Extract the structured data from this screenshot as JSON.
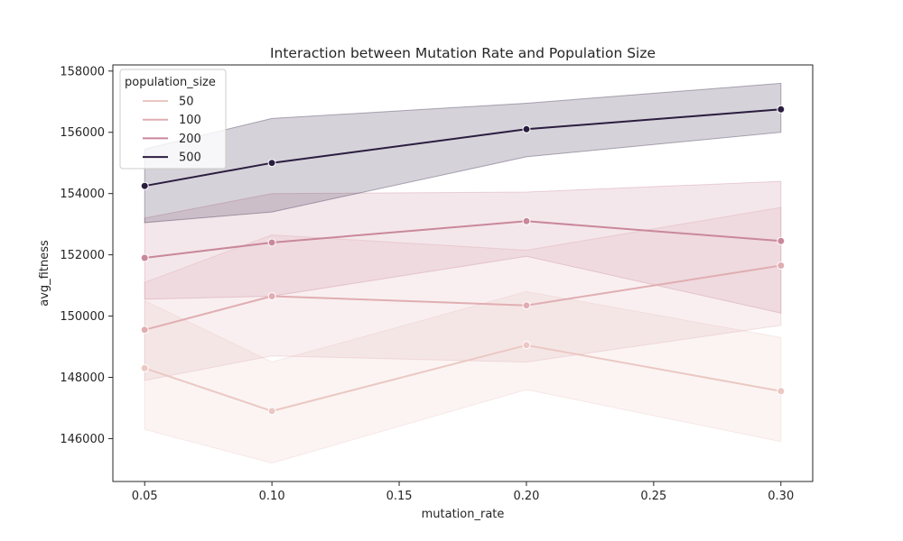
{
  "chart_data": {
    "type": "line",
    "title": "Interaction between Mutation Rate and Population Size",
    "xlabel": "mutation_rate",
    "ylabel": "avg_fitness",
    "x": [
      0.05,
      0.1,
      0.2,
      0.3
    ],
    "xticks": [
      "0.05",
      "0.10",
      "0.15",
      "0.20",
      "0.25",
      "0.30"
    ],
    "xtick_values": [
      0.05,
      0.1,
      0.15,
      0.2,
      0.25,
      0.3
    ],
    "yticks": [
      "146000",
      "148000",
      "150000",
      "152000",
      "154000",
      "156000",
      "158000"
    ],
    "ytick_values": [
      146000,
      148000,
      150000,
      152000,
      154000,
      156000,
      158000
    ],
    "xlim": [
      0.0375,
      0.3125
    ],
    "ylim": [
      144600,
      158200
    ],
    "grid": false,
    "legend": {
      "title": "population_size",
      "position": "top-left"
    },
    "series": [
      {
        "name": "50",
        "color": "#ebc8c3",
        "band_opacity": 0.2,
        "values": [
          148300,
          146900,
          149050,
          147550
        ],
        "ci_low": [
          146300,
          145200,
          147600,
          145900
        ],
        "ci_high": [
          150500,
          148500,
          150800,
          149300
        ]
      },
      {
        "name": "100",
        "color": "#e0aeb2",
        "band_opacity": 0.2,
        "values": [
          149550,
          150650,
          150350,
          151650
        ],
        "ci_low": [
          147900,
          148700,
          148500,
          149700
        ],
        "ci_high": [
          151100,
          152650,
          152150,
          153550
        ]
      },
      {
        "name": "200",
        "color": "#c9889b",
        "band_opacity": 0.2,
        "values": [
          151900,
          152400,
          153100,
          152450
        ],
        "ci_low": [
          150550,
          150650,
          151950,
          150100
        ],
        "ci_high": [
          153200,
          154000,
          154050,
          154400
        ]
      },
      {
        "name": "500",
        "color": "#2b1d3f",
        "band_opacity": 0.2,
        "values": [
          154250,
          155000,
          156100,
          156750
        ],
        "ci_low": [
          153050,
          153400,
          155200,
          156000
        ],
        "ci_high": [
          155450,
          156450,
          156950,
          157600
        ]
      }
    ]
  }
}
